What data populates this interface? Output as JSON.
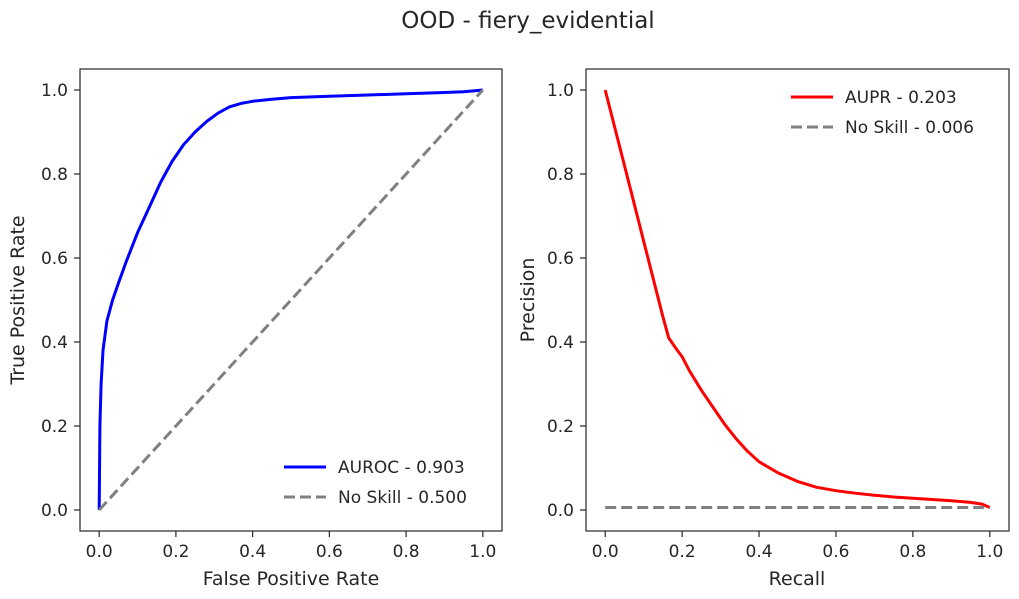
{
  "figure": {
    "title": "OOD - fiery_evidential"
  },
  "chart_data": [
    {
      "type": "line",
      "xlabel": "False Positive Rate",
      "ylabel": "True Positive Rate",
      "xlim": [
        -0.05,
        1.05
      ],
      "ylim": [
        -0.05,
        1.05
      ],
      "xticks": [
        "0.0",
        "0.2",
        "0.4",
        "0.6",
        "0.8",
        "1.0"
      ],
      "yticks": [
        "0.0",
        "0.2",
        "0.4",
        "0.6",
        "0.8",
        "1.0"
      ],
      "grid": false,
      "legend_position": "lower-right",
      "series": [
        {
          "name": "AUROC - 0.903",
          "color": "#0000ff",
          "dash": "solid",
          "x": [
            0.0,
            0.002,
            0.005,
            0.01,
            0.02,
            0.035,
            0.05,
            0.07,
            0.1,
            0.13,
            0.16,
            0.19,
            0.22,
            0.25,
            0.28,
            0.31,
            0.34,
            0.37,
            0.4,
            0.45,
            0.5,
            0.6,
            0.7,
            0.8,
            0.9,
            0.95,
            0.98,
            1.0
          ],
          "y": [
            0.0,
            0.2,
            0.3,
            0.38,
            0.45,
            0.5,
            0.54,
            0.59,
            0.66,
            0.72,
            0.78,
            0.83,
            0.87,
            0.9,
            0.925,
            0.945,
            0.96,
            0.968,
            0.973,
            0.978,
            0.982,
            0.985,
            0.988,
            0.991,
            0.994,
            0.996,
            0.998,
            1.0
          ]
        },
        {
          "name": "No Skill - 0.500",
          "color": "#808080",
          "dash": "dashed",
          "x": [
            0.0,
            1.0
          ],
          "y": [
            0.0,
            1.0
          ]
        }
      ]
    },
    {
      "type": "line",
      "xlabel": "Recall",
      "ylabel": "Precision",
      "xlim": [
        -0.05,
        1.05
      ],
      "ylim": [
        -0.05,
        1.05
      ],
      "xticks": [
        "0.0",
        "0.2",
        "0.4",
        "0.6",
        "0.8",
        "1.0"
      ],
      "yticks": [
        "0.0",
        "0.2",
        "0.4",
        "0.6",
        "0.8",
        "1.0"
      ],
      "grid": false,
      "legend_position": "upper-right",
      "series": [
        {
          "name": "AUPR - 0.203",
          "color": "#ff0000",
          "dash": "solid",
          "x": [
            0.0,
            0.05,
            0.1,
            0.15,
            0.165,
            0.18,
            0.2,
            0.22,
            0.25,
            0.28,
            0.31,
            0.34,
            0.37,
            0.4,
            0.45,
            0.5,
            0.55,
            0.6,
            0.65,
            0.7,
            0.75,
            0.8,
            0.85,
            0.9,
            0.95,
            0.98,
            1.0
          ],
          "y": [
            1.0,
            0.82,
            0.64,
            0.46,
            0.41,
            0.39,
            0.365,
            0.33,
            0.285,
            0.245,
            0.205,
            0.17,
            0.14,
            0.115,
            0.088,
            0.068,
            0.054,
            0.046,
            0.04,
            0.035,
            0.031,
            0.028,
            0.025,
            0.022,
            0.018,
            0.014,
            0.006
          ]
        },
        {
          "name": "No Skill - 0.006",
          "color": "#808080",
          "dash": "dashed",
          "x": [
            0.0,
            1.0
          ],
          "y": [
            0.006,
            0.006
          ]
        }
      ]
    }
  ]
}
